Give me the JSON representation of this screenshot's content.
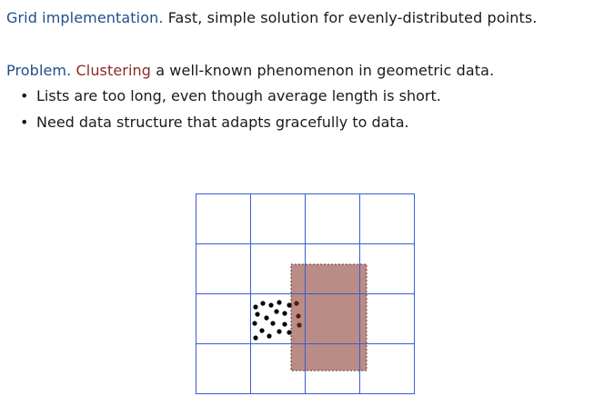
{
  "grid_line": {
    "term": "Grid implementation.",
    "text": "Fast, simple solution for evenly-distributed points."
  },
  "problem_line": {
    "term": "Problem.",
    "highlight": "Clustering",
    "text": "a well-known phenomenon in geometric data."
  },
  "bullets": [
    "Lists are too long, even though average length is short.",
    "Need data structure that adapts gracefully to data."
  ],
  "bullet_char": "•",
  "colors": {
    "term": "#1f4e8c",
    "highlight": "#8b2b22",
    "grid_lines": "#3b5bd6",
    "cell_fill": "#b98c85",
    "points": "#000000",
    "points_inside": "#5a1a10"
  }
}
